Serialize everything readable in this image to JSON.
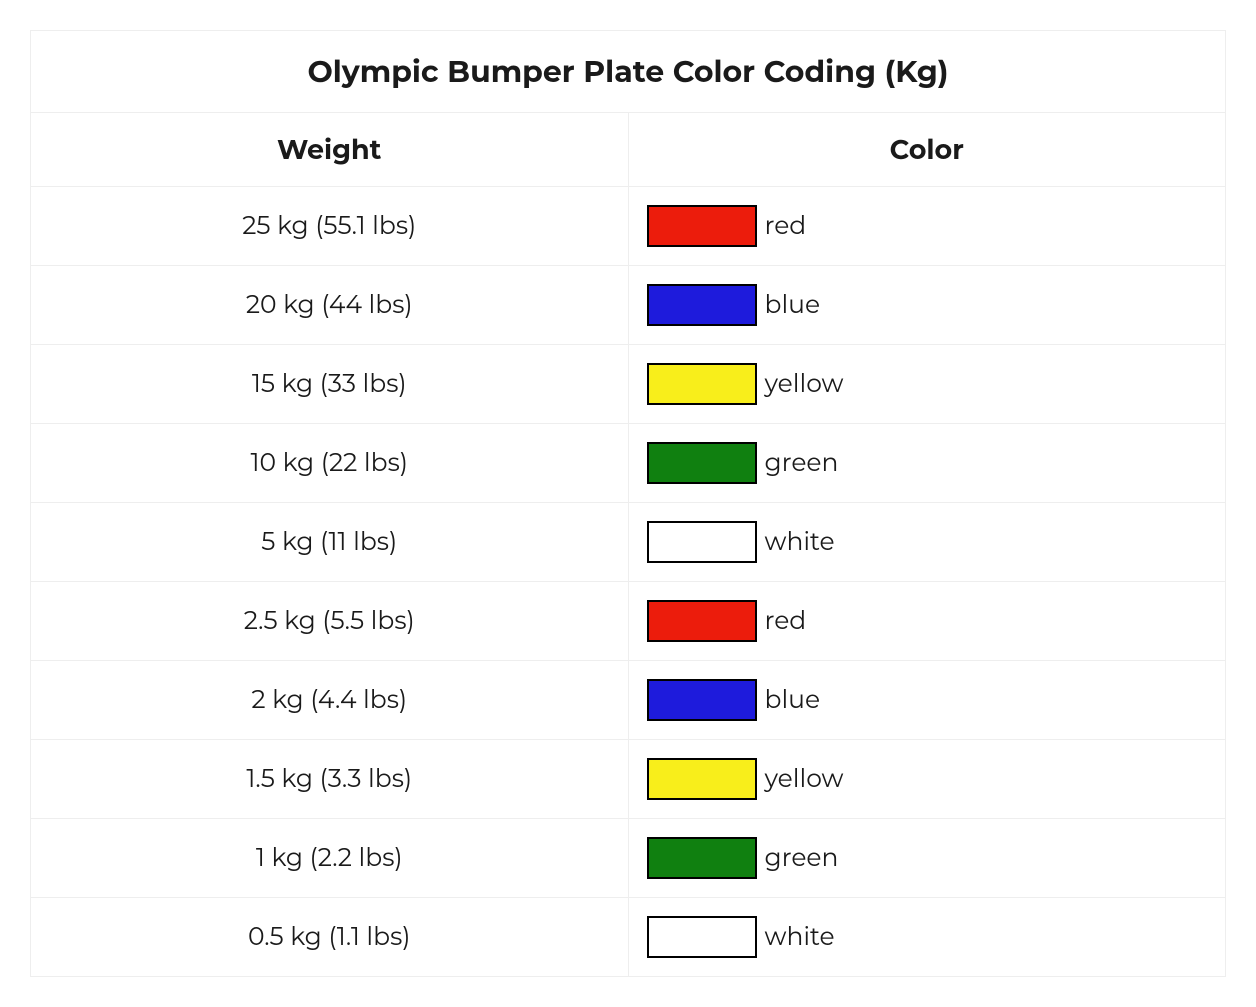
{
  "table": {
    "title": "Olympic Bumper Plate Color Coding (Kg)",
    "columns": {
      "weight": "Weight",
      "color": "Color"
    },
    "title_fontsize": 30,
    "header_fontsize": 27,
    "cell_fontsize": 25,
    "border_color": "#eeeeee",
    "swatch_border_color": "#000000",
    "background_color": "#ffffff",
    "text_color": "#1a1a1a",
    "rows": [
      {
        "weight": "25 kg (55.1 lbs)",
        "color_name": "red",
        "color_hex": "#ec1c0c"
      },
      {
        "weight": "20 kg (44 lbs)",
        "color_name": "blue",
        "color_hex": "#1e1bdc"
      },
      {
        "weight": "15 kg (33 lbs)",
        "color_name": "yellow",
        "color_hex": "#f8ee1b"
      },
      {
        "weight": "10 kg (22 lbs)",
        "color_name": "green",
        "color_hex": "#108010"
      },
      {
        "weight": "5 kg (11 lbs)",
        "color_name": "white",
        "color_hex": "#ffffff"
      },
      {
        "weight": "2.5 kg (5.5 lbs)",
        "color_name": "red",
        "color_hex": "#ec1c0c"
      },
      {
        "weight": "2 kg (4.4 lbs)",
        "color_name": "blue",
        "color_hex": "#1e1bdc"
      },
      {
        "weight": "1.5 kg (3.3 lbs)",
        "color_name": "yellow",
        "color_hex": "#f8ee1b"
      },
      {
        "weight": "1 kg (2.2 lbs)",
        "color_name": "green",
        "color_hex": "#108010"
      },
      {
        "weight": "0.5 kg (1.1 lbs)",
        "color_name": "white",
        "color_hex": "#ffffff"
      }
    ]
  }
}
